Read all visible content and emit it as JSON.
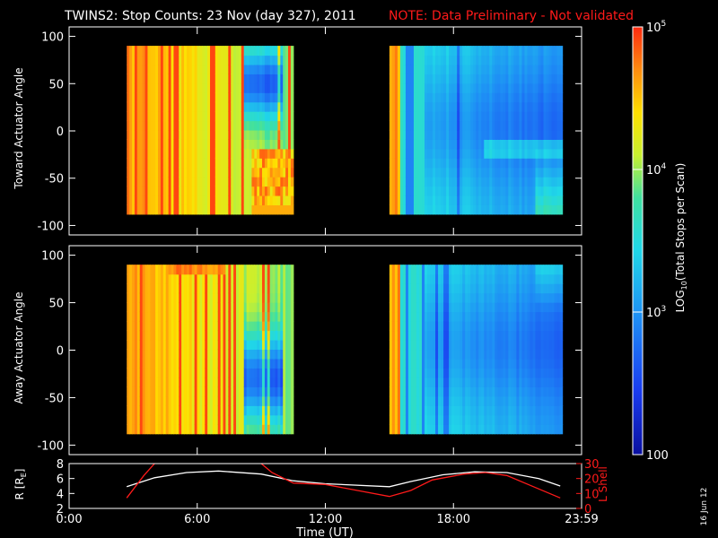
{
  "header": {
    "title": "TWINS2: Stop Counts: 23 Nov (day 327), 2011",
    "note": "NOTE: Data Preliminary - Not validated",
    "note_color": "#ff1a1a"
  },
  "side_stamp": "16 Jun 12",
  "colors": {
    "background": "#000000",
    "frame": "#ffffff",
    "r_line": "#ffffff",
    "l_line": "#ff1a1a"
  },
  "colorbar": {
    "label": "LOG10(Total Stops per Scan)",
    "label_base": "LOG",
    "label_sub": "10",
    "label_rest": "(Total Stops per Scan)",
    "scale": "log",
    "range": [
      100,
      100000
    ],
    "ticks": [
      {
        "value": 100,
        "base": "100",
        "exp": ""
      },
      {
        "value": 1000,
        "base": "10",
        "exp": "3"
      },
      {
        "value": 10000,
        "base": "10",
        "exp": "4"
      },
      {
        "value": 100000,
        "base": "10",
        "exp": "5"
      }
    ]
  },
  "chart_data": [
    {
      "type": "heatmap",
      "panel": "toward",
      "ylabel": "Toward Actuator Angle",
      "ylim": [
        -110,
        110
      ],
      "yticks": [
        "100",
        "50",
        "0",
        "-50",
        "-100"
      ],
      "x_hours": [
        0,
        24
      ],
      "data_segments_hours": [
        [
          2.7,
          10.5
        ],
        [
          15.0,
          23.1
        ]
      ],
      "angle_range": [
        -88,
        90
      ],
      "description_of_values": "log10 counts high (red/orange) early in each pass, lower (cyan/blue) later; blue minimum near 9h around +50 deg"
    },
    {
      "type": "heatmap",
      "panel": "away",
      "ylabel": "Away Actuator Angle",
      "ylim": [
        -110,
        110
      ],
      "yticks": [
        "100",
        "50",
        "0",
        "-50",
        "-100"
      ],
      "x_hours": [
        0,
        24
      ],
      "data_segments_hours": [
        [
          2.7,
          10.5
        ],
        [
          15.0,
          23.1
        ]
      ],
      "angle_range": [
        -88,
        90
      ]
    },
    {
      "type": "line",
      "panel": "orbit",
      "ylabel": "R [RE]",
      "ylabel_base": "R [R",
      "ylabel_sub": "E",
      "ylabel_end": "]",
      "ylim": [
        2,
        8
      ],
      "yticks": [
        "8",
        "6",
        "4",
        "2"
      ],
      "y2label": "L Shell",
      "y2lim": [
        0,
        30
      ],
      "y2ticks": [
        "30",
        "20",
        "10",
        "0"
      ],
      "xlabel": "Time (UT)",
      "xticks": [
        "0:00",
        "6:00",
        "12:00",
        "18:00",
        "23:59"
      ],
      "xtick_hours": [
        0,
        6,
        12,
        18,
        24
      ],
      "series": [
        {
          "axis": "left",
          "x": [
            2.7,
            4,
            5.5,
            7,
            9,
            10.5,
            12,
            15,
            16,
            17.5,
            19,
            20.5,
            22,
            23
          ],
          "y": [
            4.9,
            6.1,
            6.8,
            7.0,
            6.6,
            5.7,
            5.3,
            4.9,
            5.6,
            6.5,
            6.9,
            6.8,
            6.0,
            5.0
          ]
        },
        {
          "axis": "right",
          "x": [
            2.7,
            3.5,
            4.0
          ],
          "y": [
            7,
            22,
            30
          ]
        },
        {
          "axis": "right",
          "x": [
            9.0,
            9.5,
            10.5,
            12,
            15,
            16,
            17,
            18.5,
            19.5,
            20.5,
            21.5,
            23
          ],
          "y": [
            30,
            24,
            17,
            16,
            8,
            12,
            19,
            23,
            24,
            22,
            16,
            7
          ]
        }
      ]
    }
  ]
}
